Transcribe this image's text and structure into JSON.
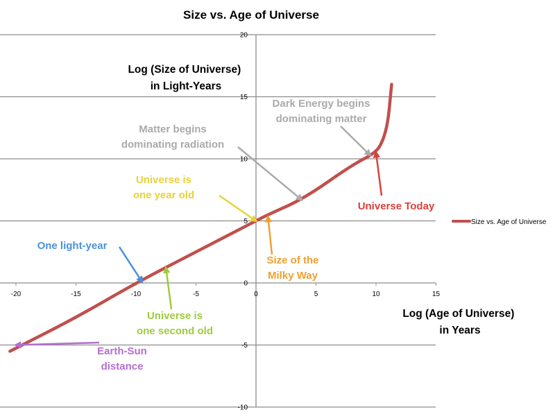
{
  "chart_data": {
    "type": "line",
    "title": "Size vs. Age of Universe",
    "xlabel": [
      "Log (Age of Universe)",
      "in Years"
    ],
    "ylabel": [
      "Log (Size of Universe)",
      "in Light-Years"
    ],
    "xlim": [
      -21,
      15
    ],
    "ylim": [
      -10,
      20
    ],
    "x_ticks": [
      "-20",
      "-15",
      "-10",
      "-5",
      "0",
      "5",
      "10",
      "15"
    ],
    "y_ticks": [
      "-10",
      "-5",
      "0",
      "5",
      "10",
      "15",
      "20"
    ],
    "grid": "horizontal",
    "legend_position": "right",
    "series": [
      {
        "name": "Size vs. Age of Universe",
        "color": "#c0504d",
        "x": [
          -20.5,
          -15,
          -10,
          -5,
          0,
          1,
          4,
          8,
          10,
          10.6,
          11,
          11.2,
          11.3
        ],
        "y": [
          -5.5,
          -2.8,
          0,
          2.5,
          5,
          5.5,
          6.8,
          9.5,
          10.5,
          11.5,
          13,
          15,
          16
        ]
      }
    ],
    "annotations": [
      {
        "lines": [
          "Dark Energy begins",
          "dominating matter"
        ],
        "color": "#aaaaaa",
        "target": [
          9.5,
          10.3
        ]
      },
      {
        "lines": [
          "Matter begins",
          "dominating radiation"
        ],
        "color": "#aaaaaa",
        "target": [
          3.8,
          6.7
        ]
      },
      {
        "lines": [
          "Universe is",
          "one year old"
        ],
        "color": "#e8d23a",
        "target": [
          0,
          5
        ]
      },
      {
        "lines": [
          "Universe Today"
        ],
        "color": "#d9403a",
        "target": [
          10,
          10.5
        ]
      },
      {
        "lines": [
          "One light-year"
        ],
        "color": "#4a90d9",
        "target": [
          -9.5,
          0.1
        ]
      },
      {
        "lines": [
          "Size of the",
          "Milky Way"
        ],
        "color": "#f0a030",
        "target": [
          1,
          5.3
        ]
      },
      {
        "lines": [
          "Universe is",
          "one second old"
        ],
        "color": "#9ccc3c",
        "target": [
          -7.5,
          1.2
        ]
      },
      {
        "lines": [
          "Earth-Sun",
          "distance"
        ],
        "color": "#b46ed0",
        "target": [
          -20,
          -5
        ]
      }
    ]
  }
}
